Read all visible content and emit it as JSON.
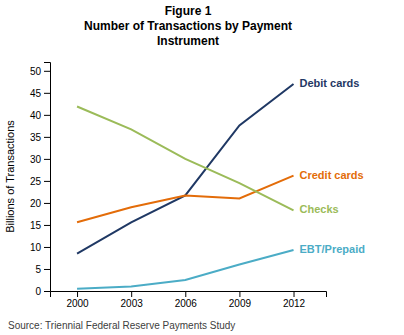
{
  "chart_data": {
    "type": "line",
    "title": "Figure 1\nNumber of Transactions by Payment\nInstrument",
    "ylabel": "Billions of Transactions",
    "source": "Source: Triennial Federal Reserve Payments Study",
    "x": [
      2000,
      2003,
      2006,
      2009,
      2012
    ],
    "series": [
      {
        "name": "Debit cards",
        "color": "#1F3864",
        "values": [
          8.5,
          15.6,
          21.7,
          37.6,
          47.0
        ]
      },
      {
        "name": "Credit cards",
        "color": "#E36C09",
        "values": [
          15.6,
          19.0,
          21.7,
          21.0,
          26.2
        ]
      },
      {
        "name": "Checks",
        "color": "#9BBB59",
        "values": [
          41.9,
          36.7,
          30.0,
          24.5,
          18.3
        ]
      },
      {
        "name": "EBT/Prepaid",
        "color": "#4BACC6",
        "values": [
          0.5,
          1.0,
          2.5,
          6.0,
          9.3
        ]
      }
    ],
    "xlim": [
      1998.5,
      2013.8
    ],
    "xticks": [
      2000,
      2003,
      2006,
      2009,
      2012
    ],
    "ylim": [
      0,
      52
    ],
    "yticks": [
      0,
      5,
      10,
      15,
      20,
      25,
      30,
      35,
      40,
      45,
      50
    ],
    "grid": false
  }
}
